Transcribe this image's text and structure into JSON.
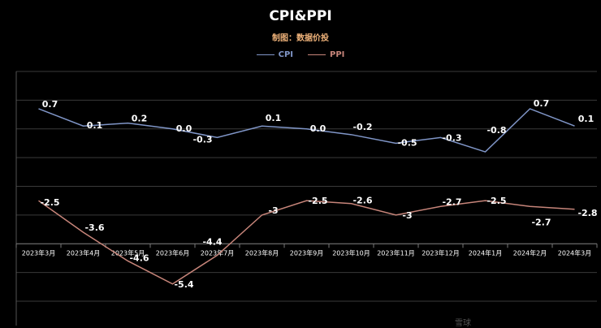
{
  "chart_data": {
    "type": "line",
    "title": "CPI&PPI",
    "subtitle": "制图：数据价投",
    "categories": [
      "2023年3月",
      "2023年4月",
      "2023年5月",
      "2023年6月",
      "2023年7月",
      "2023年8月",
      "2023年9月",
      "2023年10月",
      "2023年11月",
      "2023年12月",
      "2024年1月",
      "2024年2月",
      "2024年3月"
    ],
    "series": [
      {
        "name": "CPI",
        "color": "#8096c8",
        "values": [
          0.7,
          0.1,
          0.2,
          0.0,
          -0.3,
          0.1,
          0.0,
          -0.2,
          -0.5,
          -0.3,
          -0.8,
          0.7,
          0.1
        ],
        "labels": [
          "0.7",
          "0.1",
          "0.2",
          "0.0",
          "-0.3",
          "0.1",
          "0.0",
          "-0.2",
          "-0.5",
          "-0.3",
          "-0.8",
          "0.7",
          "0.1"
        ]
      },
      {
        "name": "PPI",
        "color": "#c7857a",
        "values": [
          -2.5,
          -3.6,
          -4.6,
          -5.4,
          -4.4,
          -3.0,
          -2.5,
          -2.6,
          -3.0,
          -2.7,
          -2.5,
          -2.7,
          -2.8
        ],
        "labels": [
          "-2.5",
          "-3.6",
          "-4.6",
          "-5.4",
          "-4.4",
          "-3",
          "-2.5",
          "-2.6",
          "-3",
          "-2.7",
          "-2.5",
          "-2.7",
          "-2.8"
        ]
      }
    ],
    "ylim": [
      -6,
      2
    ],
    "grid": true,
    "legend": "top-center",
    "xlabel": "",
    "ylabel": ""
  },
  "watermark": "雪球"
}
